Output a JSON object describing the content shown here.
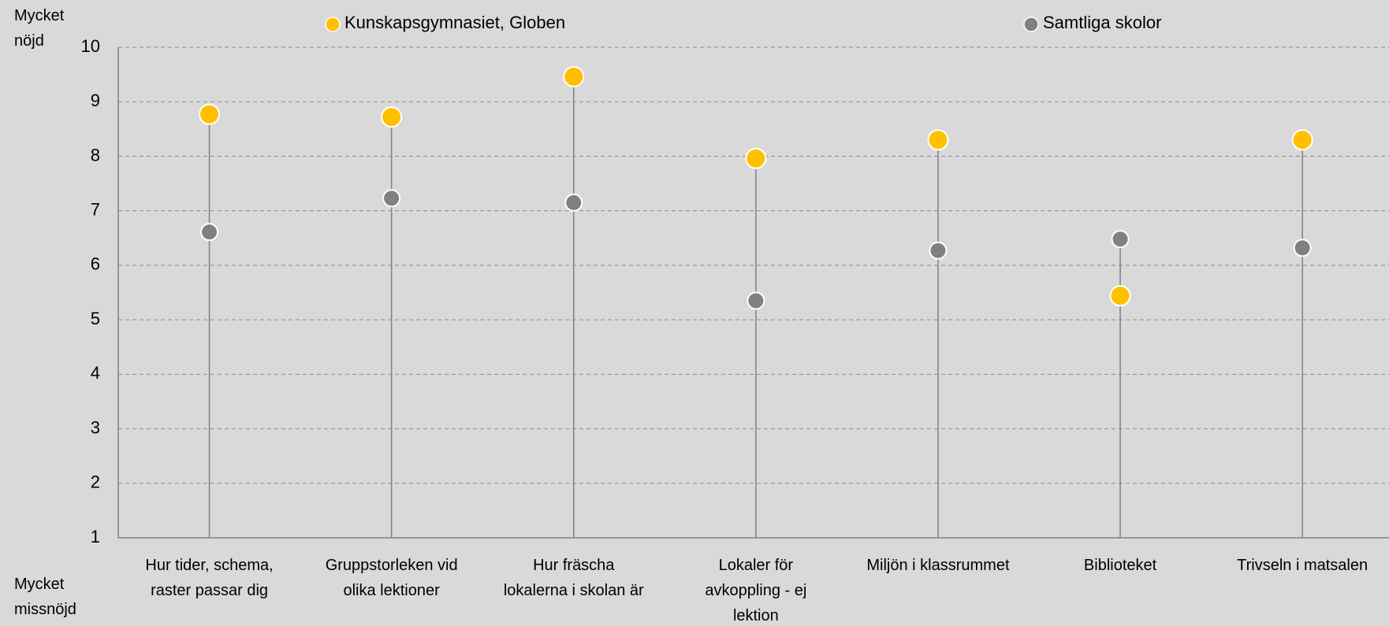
{
  "chart_data": {
    "type": "dot",
    "annotations": {
      "top": "Mycket\nnöjd",
      "bottom": "Mycket\nmissnöjd"
    },
    "categories": [
      "Hur tider, schema,\nraster passar dig",
      "Gruppstorleken vid\nolika lektioner",
      "Hur fräscha\nlokalerna i skolan är",
      "Lokaler för\navkoppling - ej\nlektion",
      "Miljön i klassrummet",
      "Biblioteket",
      "Trivseln i matsalen"
    ],
    "series": [
      {
        "name": "Kunskapsgymnasiet, Globen",
        "color": "#ffc000",
        "values": [
          8.77,
          8.72,
          9.46,
          7.96,
          8.3,
          5.44,
          8.3
        ]
      },
      {
        "name": "Samtliga skolor",
        "color": "#808080",
        "values": [
          6.61,
          7.23,
          7.15,
          5.35,
          6.27,
          6.48,
          6.32
        ]
      }
    ],
    "ylim": [
      1,
      10
    ],
    "yticks": [
      1,
      2,
      3,
      4,
      5,
      6,
      7,
      8,
      9,
      10
    ],
    "grid": true
  }
}
